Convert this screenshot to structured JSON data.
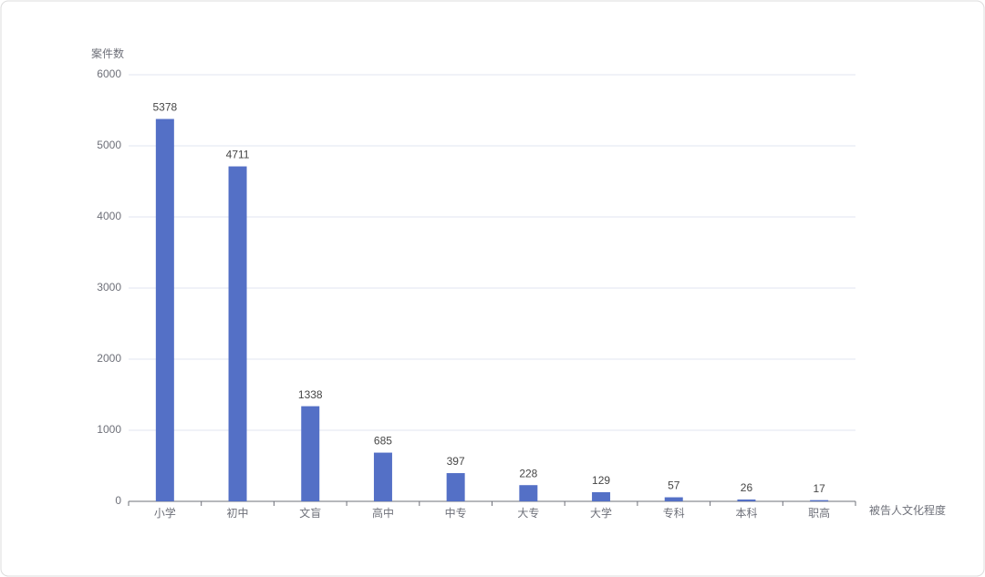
{
  "chart_data": {
    "type": "bar",
    "y_axis_label": "案件数",
    "x_axis_label": "被告人文化程度",
    "categories": [
      "小学",
      "初中",
      "文盲",
      "高中",
      "中专",
      "大专",
      "大学",
      "专科",
      "本科",
      "职高"
    ],
    "values": [
      5378,
      4711,
      1338,
      685,
      397,
      228,
      129,
      57,
      26,
      17
    ],
    "color": "#5470c6",
    "ylim": [
      0,
      6000
    ],
    "yticks": [
      0,
      1000,
      2000,
      3000,
      4000,
      5000,
      6000
    ],
    "grid": true
  }
}
